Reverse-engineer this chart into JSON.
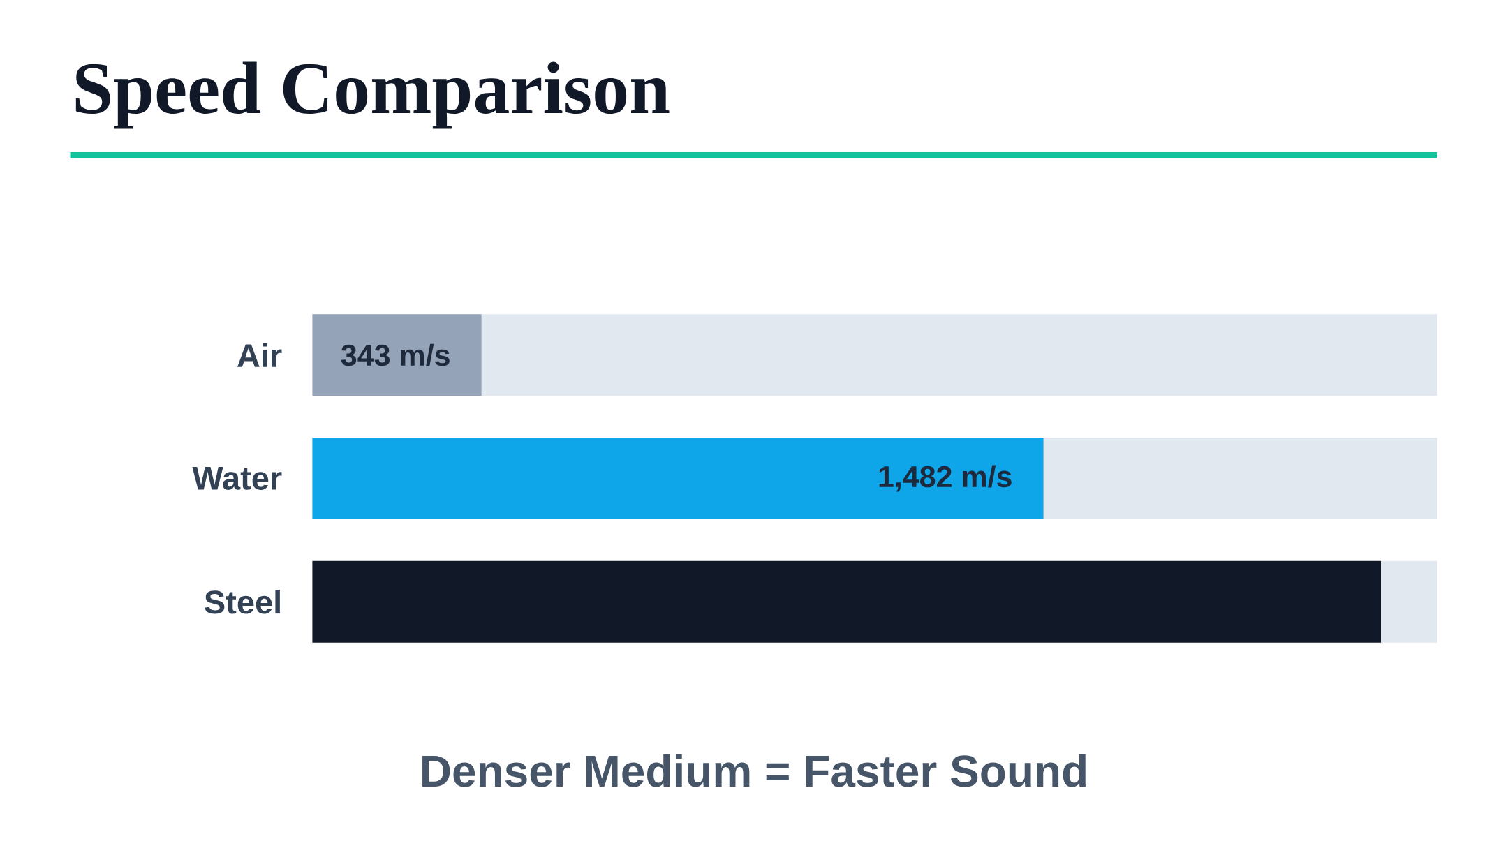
{
  "chart_data": {
    "type": "bar",
    "orientation": "horizontal",
    "stacked": true,
    "title": "Speed Comparison",
    "categories": [
      "Air",
      "Water",
      "Steel"
    ],
    "series": [
      {
        "colors": [
          "#94a3b8",
          "#0ea5e9",
          "#111827"
        ],
        "values": [
          343,
          1482,
          2166
        ],
        "value_labels": [
          "343 m/s",
          "1,482 m/s",
          null
        ]
      },
      {
        "color": "#e2e8f0",
        "values": [
          1937,
          798,
          114
        ]
      }
    ],
    "xlim": [
      0,
      2280
    ],
    "tick_labels": "y",
    "annotations": [
      "Denser Medium = Faster Sound"
    ]
  }
}
